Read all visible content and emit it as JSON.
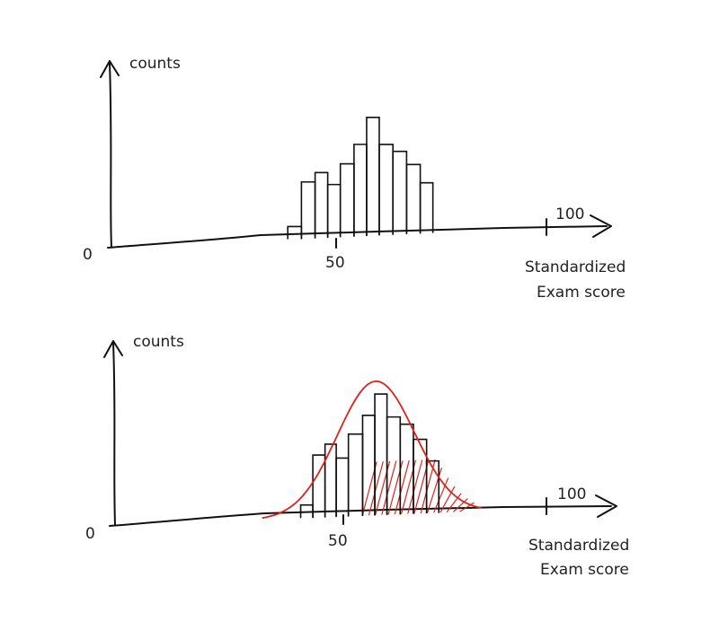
{
  "chart_data": [
    {
      "type": "bar",
      "ylabel": "counts",
      "xlabel": [
        "Standardized",
        "Exam score"
      ],
      "origin_label": "0",
      "x_ticks": [
        {
          "value": 50,
          "label": "50"
        },
        {
          "value": 100,
          "label": "100"
        }
      ],
      "xlim": [
        0,
        100
      ],
      "ylim": [
        0,
        10
      ],
      "bins": [
        {
          "x": 40,
          "count": 1
        },
        {
          "x": 43.5,
          "count": 4.5
        },
        {
          "x": 46.5,
          "count": 5.2
        },
        {
          "x": 49.5,
          "count": 4.2
        },
        {
          "x": 52.5,
          "count": 5.8
        },
        {
          "x": 56,
          "count": 7.3
        },
        {
          "x": 58.5,
          "count": 9.4
        },
        {
          "x": 62,
          "count": 7.2
        },
        {
          "x": 65,
          "count": 6.6
        },
        {
          "x": 68.5,
          "count": 5.5
        },
        {
          "x": 71.5,
          "count": 4.0
        }
      ]
    },
    {
      "type": "bar",
      "ylabel": "counts",
      "xlabel": [
        "Standardized",
        "Exam score"
      ],
      "origin_label": "0",
      "x_ticks": [
        {
          "value": 50,
          "label": "50"
        },
        {
          "value": 100,
          "label": "100"
        }
      ],
      "xlim": [
        0,
        100
      ],
      "ylim": [
        0,
        10
      ],
      "bins": [
        {
          "x": 41,
          "count": 1
        },
        {
          "x": 44,
          "count": 4.8
        },
        {
          "x": 47,
          "count": 5.6
        },
        {
          "x": 49.5,
          "count": 4.5
        },
        {
          "x": 53,
          "count": 6.3
        },
        {
          "x": 56.5,
          "count": 7.7
        },
        {
          "x": 59,
          "count": 9.3
        },
        {
          "x": 62.5,
          "count": 7.5
        },
        {
          "x": 65.5,
          "count": 6.9
        },
        {
          "x": 69,
          "count": 5.7
        },
        {
          "x": 72,
          "count": 4.0
        }
      ],
      "overlay": {
        "type": "density-curve",
        "color": "#e0201c",
        "shaded_from": 56
      }
    }
  ]
}
